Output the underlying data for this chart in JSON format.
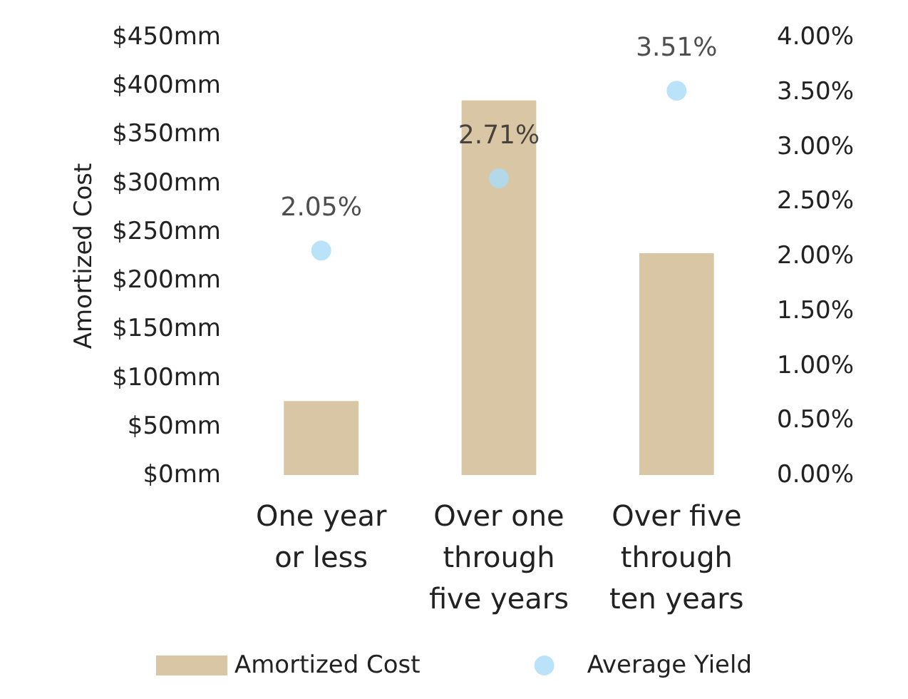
{
  "chart_data": {
    "type": "bar",
    "ylabel": "Amortized Cost",
    "categories": [
      "One year\nor less",
      "Over one\nthrough\nfive years",
      "Over five\nthrough\nten years"
    ],
    "series": [
      {
        "name": "Amortized Cost",
        "color": "#d9c6a5",
        "values": [
          76,
          385,
          228
        ]
      },
      {
        "name": "Average Yield",
        "type": "scatter",
        "axis": "y2",
        "color": "#a9dcf7",
        "values": [
          2.05,
          2.71,
          3.51
        ],
        "value_labels": [
          "2.05%",
          "2.71%",
          "3.51%"
        ]
      }
    ],
    "ylim": [
      0,
      450
    ],
    "yticks": [
      {
        "value": 0,
        "label": "$0mm"
      },
      {
        "value": 50,
        "label": "$50mm"
      },
      {
        "value": 100,
        "label": "$100mm"
      },
      {
        "value": 150,
        "label": "$150mm"
      },
      {
        "value": 200,
        "label": "$200mm"
      },
      {
        "value": 250,
        "label": "$250mm"
      },
      {
        "value": 300,
        "label": "$300mm"
      },
      {
        "value": 350,
        "label": "$350mm"
      },
      {
        "value": 400,
        "label": "$400mm"
      },
      {
        "value": 450,
        "label": "$450mm"
      }
    ],
    "y2lim": [
      0,
      4
    ],
    "y2ticks": [
      {
        "value": 0,
        "label": "0.00%"
      },
      {
        "value": 0.5,
        "label": "0.50%"
      },
      {
        "value": 1,
        "label": "1.00%"
      },
      {
        "value": 1.5,
        "label": "1.50%"
      },
      {
        "value": 2,
        "label": "2.00%"
      },
      {
        "value": 2.5,
        "label": "2.50%"
      },
      {
        "value": 3,
        "label": "3.00%"
      },
      {
        "value": 3.5,
        "label": "3.50%"
      },
      {
        "value": 4,
        "label": "4.00%"
      }
    ],
    "grid": false,
    "legend": "bottom",
    "marker": "circle"
  }
}
